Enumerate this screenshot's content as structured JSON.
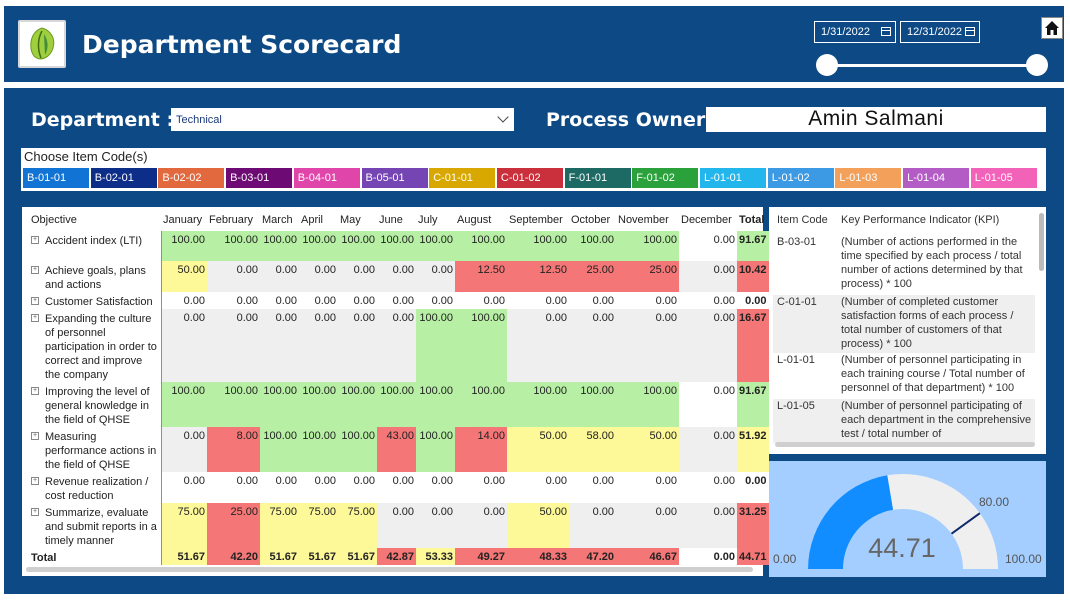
{
  "header": {
    "title": "Department Scorecard",
    "start_date": "1/31/2022",
    "end_date": "12/31/2022"
  },
  "filters": {
    "department_label": "Department :",
    "department_value": "Technical",
    "owner_label": "Process Owner :",
    "owner_value": "Amin Salmani"
  },
  "codes": {
    "title": "Choose Item Code(s)",
    "items": [
      {
        "label": "B-01-01",
        "color": "#1173d4"
      },
      {
        "label": "B-02-01",
        "color": "#0c2d88"
      },
      {
        "label": "B-02-02",
        "color": "#e2693d"
      },
      {
        "label": "B-03-01",
        "color": "#6d0a73"
      },
      {
        "label": "B-04-01",
        "color": "#e046a9"
      },
      {
        "label": "B-05-01",
        "color": "#7445b3"
      },
      {
        "label": "C-01-01",
        "color": "#d8a700"
      },
      {
        "label": "C-01-02",
        "color": "#c9303b"
      },
      {
        "label": "F-01-01",
        "color": "#1d6a64"
      },
      {
        "label": "F-01-02",
        "color": "#2aa13a"
      },
      {
        "label": "L-01-01",
        "color": "#22b6ec"
      },
      {
        "label": "L-01-02",
        "color": "#3c9ae5"
      },
      {
        "label": "L-01-03",
        "color": "#f3a05a"
      },
      {
        "label": "L-01-04",
        "color": "#b35cc6"
      },
      {
        "label": "L-01-05",
        "color": "#f262b8"
      }
    ]
  },
  "table": {
    "headers": [
      "Objective",
      "January",
      "February",
      "March",
      "April",
      "May",
      "June",
      "July",
      "August",
      "September",
      "October",
      "November",
      "December",
      "Total"
    ],
    "rows": [
      {
        "name": "Accident index (LTI)",
        "values": [
          "100.00",
          "100.00",
          "100.00",
          "100.00",
          "100.00",
          "100.00",
          "100.00",
          "100.00",
          "100.00",
          "100.00",
          "100.00",
          "0.00",
          "91.67"
        ],
        "colors": [
          "g",
          "g",
          "g",
          "g",
          "g",
          "g",
          "g",
          "g",
          "g",
          "g",
          "g",
          "w",
          "g"
        ]
      },
      {
        "name": "Achieve goals, plans and actions",
        "values": [
          "50.00",
          "0.00",
          "0.00",
          "0.00",
          "0.00",
          "0.00",
          "0.00",
          "12.50",
          "12.50",
          "25.00",
          "25.00",
          "0.00",
          "10.42"
        ],
        "colors": [
          "y",
          "e",
          "e",
          "e",
          "e",
          "e",
          "e",
          "r",
          "r",
          "r",
          "r",
          "e",
          "r"
        ]
      },
      {
        "name": "Customer Satisfaction",
        "values": [
          "0.00",
          "0.00",
          "0.00",
          "0.00",
          "0.00",
          "0.00",
          "0.00",
          "0.00",
          "0.00",
          "0.00",
          "0.00",
          "0.00",
          "0.00"
        ],
        "colors": [
          "w",
          "w",
          "w",
          "w",
          "w",
          "w",
          "w",
          "w",
          "w",
          "w",
          "w",
          "w",
          "w"
        ]
      },
      {
        "name": "Expanding the culture of personnel participation in order to correct and improve the company",
        "values": [
          "0.00",
          "0.00",
          "0.00",
          "0.00",
          "0.00",
          "0.00",
          "100.00",
          "100.00",
          "0.00",
          "0.00",
          "0.00",
          "0.00",
          "16.67"
        ],
        "colors": [
          "e",
          "e",
          "e",
          "e",
          "e",
          "e",
          "g",
          "g",
          "e",
          "e",
          "e",
          "e",
          "r"
        ]
      },
      {
        "name": "Improving the level of general knowledge in the field of QHSE",
        "values": [
          "100.00",
          "100.00",
          "100.00",
          "100.00",
          "100.00",
          "100.00",
          "100.00",
          "100.00",
          "100.00",
          "100.00",
          "100.00",
          "0.00",
          "91.67"
        ],
        "colors": [
          "g",
          "g",
          "g",
          "g",
          "g",
          "g",
          "g",
          "g",
          "g",
          "g",
          "g",
          "w",
          "g"
        ]
      },
      {
        "name": "Measuring performance actions in the field of QHSE",
        "values": [
          "0.00",
          "8.00",
          "100.00",
          "100.00",
          "100.00",
          "43.00",
          "100.00",
          "14.00",
          "50.00",
          "58.00",
          "50.00",
          "0.00",
          "51.92"
        ],
        "colors": [
          "e",
          "r",
          "g",
          "g",
          "g",
          "r",
          "g",
          "r",
          "y",
          "y",
          "y",
          "e",
          "y"
        ]
      },
      {
        "name": "Revenue realization / cost reduction",
        "values": [
          "0.00",
          "0.00",
          "0.00",
          "0.00",
          "0.00",
          "0.00",
          "0.00",
          "0.00",
          "0.00",
          "0.00",
          "0.00",
          "0.00",
          "0.00"
        ],
        "colors": [
          "w",
          "w",
          "w",
          "w",
          "w",
          "w",
          "w",
          "w",
          "w",
          "w",
          "w",
          "w",
          "w"
        ]
      },
      {
        "name": "Summarize, evaluate and submit reports in a timely manner",
        "values": [
          "75.00",
          "25.00",
          "75.00",
          "75.00",
          "75.00",
          "0.00",
          "0.00",
          "0.00",
          "50.00",
          "0.00",
          "0.00",
          "0.00",
          "31.25"
        ],
        "colors": [
          "y",
          "r",
          "y",
          "y",
          "y",
          "e",
          "e",
          "e",
          "y",
          "e",
          "e",
          "e",
          "r"
        ]
      }
    ],
    "total_label": "Total",
    "totals": [
      "51.67",
      "42.20",
      "51.67",
      "51.67",
      "51.67",
      "42.87",
      "53.33",
      "49.27",
      "48.33",
      "47.20",
      "46.67",
      "0.00",
      "44.71"
    ],
    "total_colors": [
      "y",
      "r",
      "y",
      "y",
      "y",
      "r",
      "y",
      "r",
      "r",
      "r",
      "r",
      "w",
      "r"
    ]
  },
  "kpi": {
    "header_code": "Item Code",
    "header_kpi": "Key Performance Indicator (KPI)",
    "rows": [
      {
        "code": "B-03-01",
        "text": "(Number of actions performed in the time specified by each process / total number of actions determined by that process) * 100"
      },
      {
        "code": "C-01-01",
        "text": "(Number of completed customer satisfaction forms of each process / total number of customers of that process) * 100"
      },
      {
        "code": "L-01-01",
        "text": "(Number of personnel participating in each training course / Total number of personnel of that department) * 100"
      },
      {
        "code": "L-01-05",
        "text": "(Number of personnel participating of each department in the comprehensive test / total number of"
      }
    ]
  },
  "gauge": {
    "value": 44.71,
    "value_label": "44.71",
    "min_label": "0.00",
    "max_label": "100.00",
    "target_label": "80.00",
    "min": 0,
    "max": 100,
    "target": 80,
    "fill_color": "#118dff",
    "bg_color": "#efefef"
  },
  "colors": {
    "header_bg": "#0d4a85",
    "green": "#b7f0a4",
    "yellow": "#fdf898",
    "red": "#f57676",
    "grey": "#efefef"
  }
}
